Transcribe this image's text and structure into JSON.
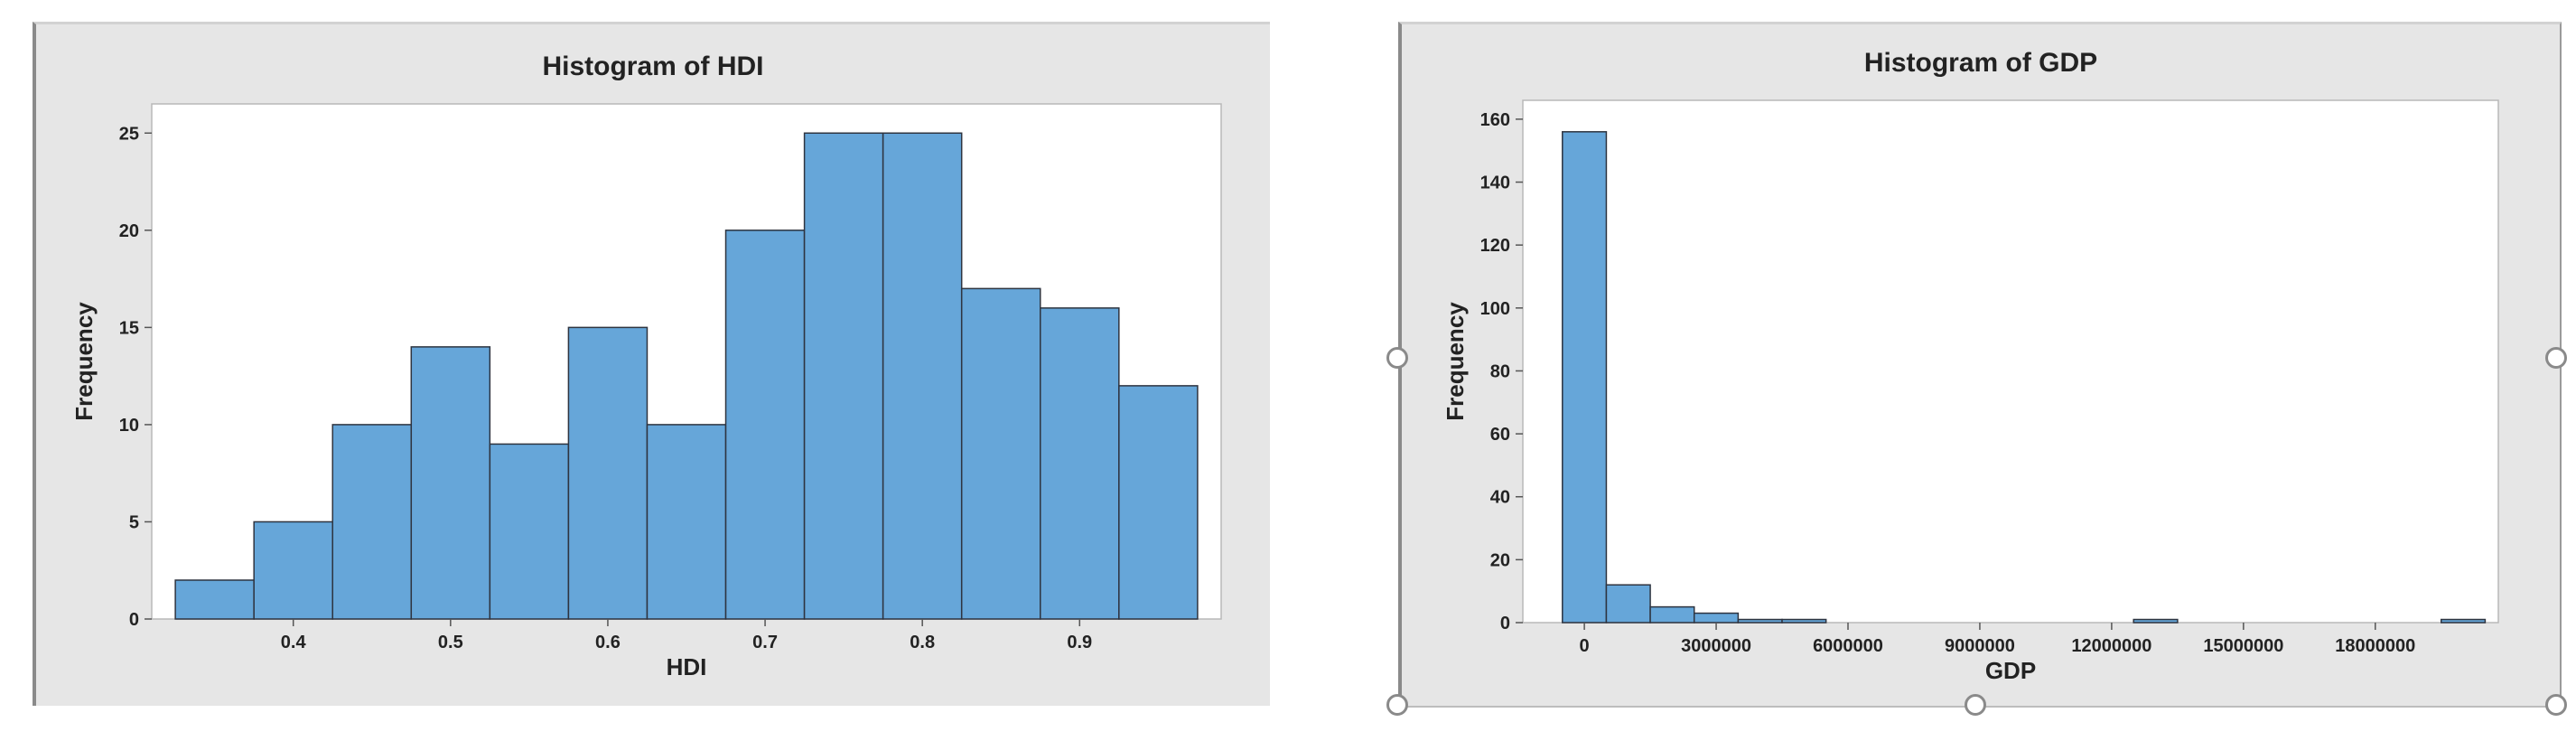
{
  "chart_data": [
    {
      "type": "bar",
      "title": "Histogram of HDI",
      "xlabel": "HDI",
      "ylabel": "Frequency",
      "bin_width": 0.05,
      "bin_start": 0.325,
      "xlim": [
        0.31,
        0.99
      ],
      "ylim": [
        0,
        26.5
      ],
      "x_ticks": [
        0.4,
        0.5,
        0.6,
        0.7,
        0.8,
        0.9
      ],
      "x_tick_labels": [
        "0.4",
        "0.5",
        "0.6",
        "0.7",
        "0.8",
        "0.9"
      ],
      "y_ticks": [
        0,
        5,
        10,
        15,
        20,
        25
      ],
      "y_tick_labels": [
        "0",
        "5",
        "10",
        "15",
        "20",
        "25"
      ],
      "categories": [
        "0.35",
        "0.40",
        "0.45",
        "0.50",
        "0.55",
        "0.60",
        "0.65",
        "0.70",
        "0.75",
        "0.80",
        "0.85",
        "0.90",
        "0.95"
      ],
      "values": [
        2,
        5,
        10,
        14,
        9,
        15,
        10,
        20,
        25,
        25,
        17,
        16,
        12
      ],
      "grid": false,
      "legend": "none",
      "bar_color": "#66a6d9"
    },
    {
      "type": "bar",
      "title": "Histogram of GDP",
      "xlabel": "GDP",
      "ylabel": "Frequency",
      "bin_width": 1000000,
      "bin_start": -500000,
      "xlim": [
        -1400000,
        20800000
      ],
      "ylim": [
        0,
        166
      ],
      "x_ticks": [
        0,
        3000000,
        6000000,
        9000000,
        12000000,
        15000000,
        18000000
      ],
      "x_tick_labels": [
        "0",
        "3000000",
        "6000000",
        "9000000",
        "12000000",
        "15000000",
        "18000000"
      ],
      "y_ticks": [
        0,
        20,
        40,
        60,
        80,
        100,
        120,
        140,
        160
      ],
      "y_tick_labels": [
        "0",
        "20",
        "40",
        "60",
        "80",
        "100",
        "120",
        "140",
        "160"
      ],
      "categories": [
        "0",
        "1000000",
        "2000000",
        "3000000",
        "4000000",
        "5000000",
        "6000000",
        "7000000",
        "8000000",
        "9000000",
        "10000000",
        "11000000",
        "12000000",
        "13000000",
        "14000000",
        "15000000",
        "16000000",
        "17000000",
        "18000000",
        "19000000",
        "20000000"
      ],
      "values": [
        156,
        12,
        5,
        3,
        1,
        1,
        0,
        0,
        0,
        0,
        0,
        0,
        0,
        1,
        0,
        0,
        0,
        0,
        0,
        0,
        1
      ],
      "grid": false,
      "legend": "none",
      "bar_color": "#66a6d9"
    }
  ]
}
